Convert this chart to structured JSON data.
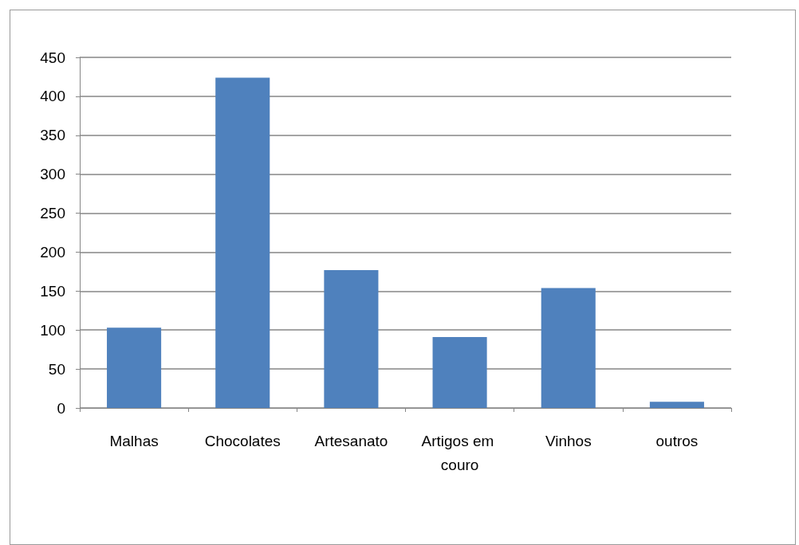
{
  "chart_data": {
    "type": "bar",
    "categories": [
      "Malhas",
      "Chocolates",
      "Artesanato",
      "Artigos em couro",
      "Vinhos",
      "outros"
    ],
    "values": [
      103,
      424,
      177,
      91,
      154,
      8
    ],
    "color": "#4f81bd",
    "ylim": [
      0,
      450
    ],
    "yticks": [
      0,
      50,
      100,
      150,
      200,
      250,
      300,
      350,
      400,
      450
    ],
    "grid": "y"
  }
}
